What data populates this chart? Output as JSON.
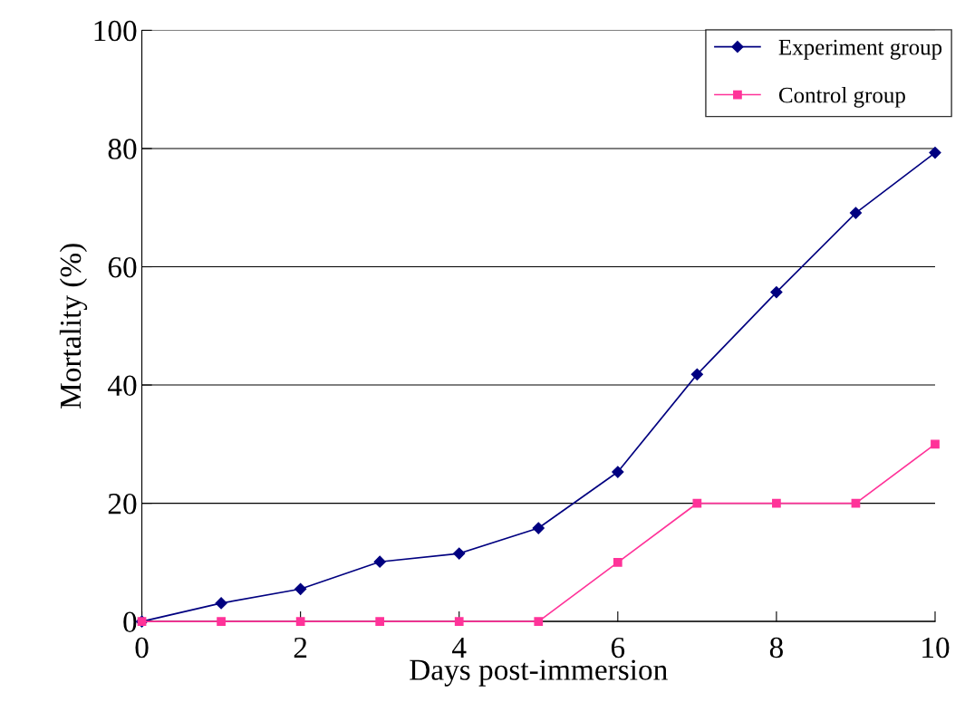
{
  "chart_data": {
    "type": "line",
    "xlabel": "Days post-immersion",
    "ylabel": "Mortality (%)",
    "x": [
      0,
      1,
      2,
      3,
      4,
      5,
      6,
      7,
      8,
      9,
      10
    ],
    "series": [
      {
        "name": "Experiment group",
        "color": "#000080",
        "marker": "diamond",
        "values": [
          0,
          3.1,
          5.5,
          10.1,
          11.5,
          15.8,
          25.3,
          41.8,
          55.7,
          69.1,
          79.3
        ]
      },
      {
        "name": "Control group",
        "color": "#ff3399",
        "marker": "square",
        "values": [
          0,
          0,
          0,
          0,
          0,
          0,
          10,
          20,
          20,
          20,
          30
        ]
      }
    ],
    "xlim": [
      0,
      10
    ],
    "xticks": [
      0,
      2,
      4,
      6,
      8,
      10
    ],
    "ylim": [
      0,
      100
    ],
    "yticks": [
      0,
      20,
      40,
      60,
      80,
      100
    ],
    "grid": "y",
    "legend": "top right",
    "line_style": "solid"
  }
}
